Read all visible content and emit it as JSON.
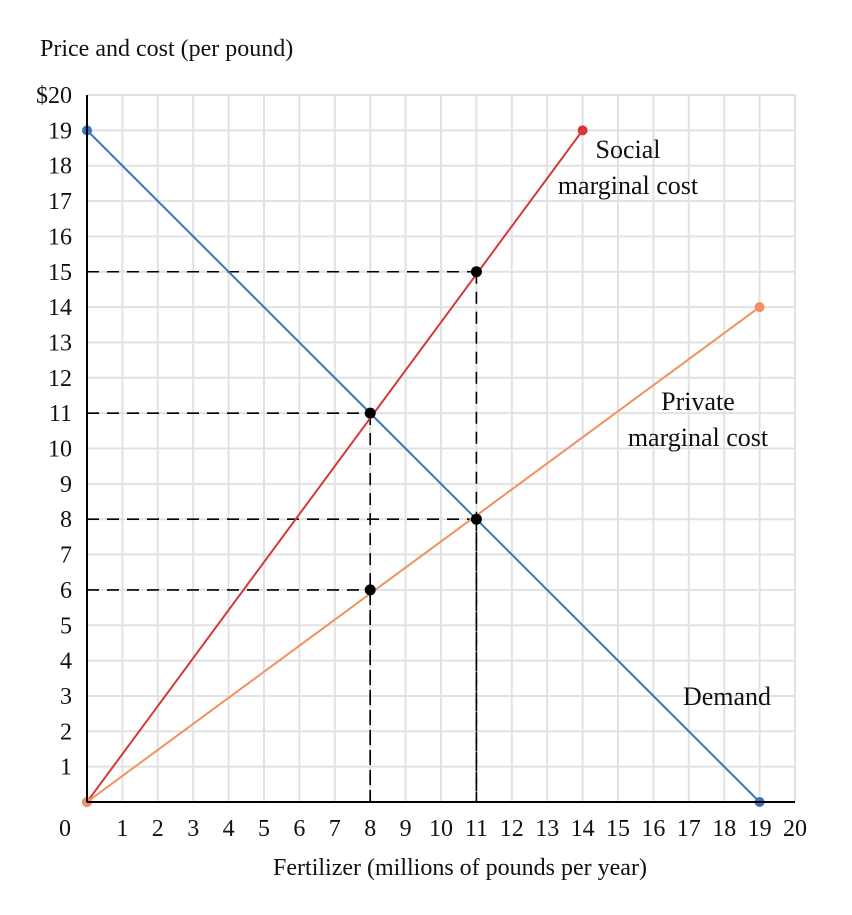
{
  "chart_data": {
    "type": "line",
    "ylabel": "Price and cost (per pound)",
    "xlabel": "Fertilizer (millions of pounds per year)",
    "xlim": [
      0,
      20
    ],
    "ylim": [
      0,
      20
    ],
    "grid": true,
    "x_ticks": [
      "0",
      "1",
      "2",
      "3",
      "4",
      "5",
      "6",
      "7",
      "8",
      "9",
      "10",
      "11",
      "12",
      "13",
      "14",
      "15",
      "16",
      "17",
      "18",
      "19",
      "20"
    ],
    "y_ticks": [
      "",
      "1",
      "2",
      "3",
      "4",
      "5",
      "6",
      "7",
      "8",
      "9",
      "10",
      "11",
      "12",
      "13",
      "14",
      "15",
      "16",
      "17",
      "18",
      "19",
      "$20"
    ],
    "series": [
      {
        "name": "Demand",
        "label_lines": [
          "Demand"
        ],
        "color": "#3b74bb",
        "points": [
          [
            0,
            19
          ],
          [
            19,
            0
          ]
        ]
      },
      {
        "name": "Social marginal cost",
        "label_lines": [
          "Social",
          "marginal cost"
        ],
        "color": "#d33a3c",
        "points": [
          [
            0,
            0
          ],
          [
            14,
            19
          ]
        ]
      },
      {
        "name": "Private marginal cost",
        "label_lines": [
          "Private",
          "marginal cost"
        ],
        "color": "#f0925f",
        "points": [
          [
            0,
            0
          ],
          [
            19,
            14
          ]
        ]
      }
    ],
    "marked_points": [
      [
        11,
        15
      ],
      [
        8,
        11
      ],
      [
        11,
        8
      ],
      [
        8,
        6
      ]
    ]
  }
}
